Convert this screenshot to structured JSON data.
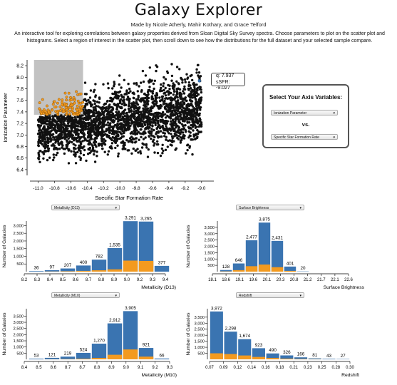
{
  "header": {
    "title": "Galaxy Explorer",
    "authors": "Made by Nicole Atherly, Mahir Kothary, and Grace Telford",
    "description": "An interactive tool for exploring correlations between galaxy properties derived from Sloan Digital Sky Survey spectra. Choose parameters to plot on the scatter plot and histograms. Select a region of interest in the scatter plot, then scroll down to see how the distributions for the full dataset and your selected sample compare."
  },
  "axis_selector": {
    "heading": "Select Your Axis Variables:",
    "y_select": "Ionization Parameter",
    "vs_label": "vs.",
    "x_select": "Specific Star Formation Rate"
  },
  "tooltip": {
    "line1": "q: 7.937",
    "line2": "sSFR: -9.027"
  },
  "colors": {
    "full": "#3a74b1",
    "selected": "#f39a1f",
    "point": "#111111",
    "brush": "#777777"
  },
  "chart_data": [
    {
      "type": "scatter",
      "xlabel": "Specific Star Formation Rate",
      "ylabel": "Ionization Parameter",
      "xticks": [
        "-11.0",
        "-10.8",
        "-10.6",
        "-10.4",
        "-10.2",
        "-10.0",
        "-9.8",
        "-9.6",
        "-9.4",
        "-9.2",
        "-9.0"
      ],
      "yticks": [
        "6.4",
        "6.6",
        "6.8",
        "7.0",
        "7.2",
        "7.4",
        "7.6",
        "7.8",
        "8.0",
        "8.2"
      ],
      "xlim": [
        -11.1,
        -8.85
      ],
      "ylim": [
        6.3,
        8.3
      ],
      "selection": {
        "x": [
          -11.05,
          -10.45
        ],
        "y": [
          7.35,
          8.3
        ]
      },
      "highlight_point": {
        "x": -9.027,
        "y": 7.937
      }
    },
    {
      "type": "bar",
      "select_label": "Metallicity (D13)",
      "xlabel": "Metallicity (D13)",
      "ylabel": "Number of Galaxies",
      "yticks": [
        "500",
        "1,000",
        "1,500",
        "2,000",
        "2,500",
        "3,000"
      ],
      "ylim": [
        0,
        3300
      ],
      "xticks": [
        "8.2",
        "8.3",
        "8.4",
        "8.5",
        "8.6",
        "8.7",
        "8.8",
        "8.9",
        "9.0",
        "9.2",
        "9.3",
        "9.4"
      ],
      "value_labels": [
        "36",
        "97",
        "207",
        "400",
        "782",
        "1,535",
        "3,291",
        "3,265",
        "377"
      ],
      "values": [
        36,
        97,
        207,
        400,
        782,
        1535,
        3291,
        3265,
        377
      ],
      "selected_values": [
        0,
        10,
        25,
        50,
        90,
        150,
        720,
        700,
        0
      ]
    },
    {
      "type": "bar",
      "select_label": "Surface Brightness",
      "xlabel": "Surface Brightness",
      "ylabel": "Number of Galaxies",
      "yticks": [
        "500",
        "1,000",
        "1,500",
        "2,000",
        "2,500",
        "3,000",
        "3,500"
      ],
      "ylim": [
        0,
        4000
      ],
      "xticks": [
        "18.1",
        "18.6",
        "19.1",
        "19.6",
        "20.1",
        "20.3",
        "20.8",
        "21.2",
        "21.7",
        "22.1",
        "22.6"
      ],
      "value_labels": [
        "128",
        "646",
        "2,477",
        "3,875",
        "2,431",
        "401",
        "20"
      ],
      "values": [
        128,
        646,
        2477,
        3875,
        2431,
        401,
        20
      ],
      "selected_values": [
        20,
        120,
        430,
        560,
        350,
        60,
        0
      ]
    },
    {
      "type": "bar",
      "select_label": "Metallicity (M10)",
      "xlabel": "Metallicity (M10)",
      "ylabel": "Number of Galaxies",
      "yticks": [
        "500",
        "1,000",
        "1,500",
        "2,000",
        "2,500",
        "3,000",
        "3,500"
      ],
      "ylim": [
        0,
        4100
      ],
      "xticks": [
        "8.4",
        "8.5",
        "8.6",
        "8.7",
        "8.7",
        "8.8",
        "8.9",
        "9.0",
        "9.1",
        "9.2",
        "9.3"
      ],
      "value_labels": [
        "53",
        "121",
        "219",
        "524",
        "1,270",
        "2,912",
        "3,905",
        "921",
        "66"
      ],
      "values": [
        53,
        121,
        219,
        524,
        1270,
        2912,
        3905,
        921,
        66
      ],
      "selected_values": [
        0,
        10,
        20,
        45,
        110,
        370,
        800,
        220,
        0
      ]
    },
    {
      "type": "bar",
      "select_label": "Redshift",
      "xlabel": "Redshift",
      "ylabel": "Number of Galaxies",
      "yticks": [
        "500",
        "1,000",
        "1,500",
        "2,000",
        "2,500",
        "3,000",
        "3,500"
      ],
      "ylim": [
        0,
        4200
      ],
      "xticks": [
        "0.07",
        "0.09",
        "0.12",
        "0.14",
        "0.16",
        "0.18",
        "0.21",
        "0.23",
        "0.25",
        "0.28",
        "0.30"
      ],
      "value_labels": [
        "3,972",
        "2,298",
        "1,674",
        "923",
        "490",
        "326",
        "166",
        "81",
        "43",
        "27"
      ],
      "values": [
        3972,
        2298,
        1674,
        923,
        490,
        326,
        166,
        81,
        43,
        27
      ],
      "selected_values": [
        500,
        440,
        320,
        200,
        110,
        60,
        30,
        15,
        0,
        0
      ]
    }
  ]
}
